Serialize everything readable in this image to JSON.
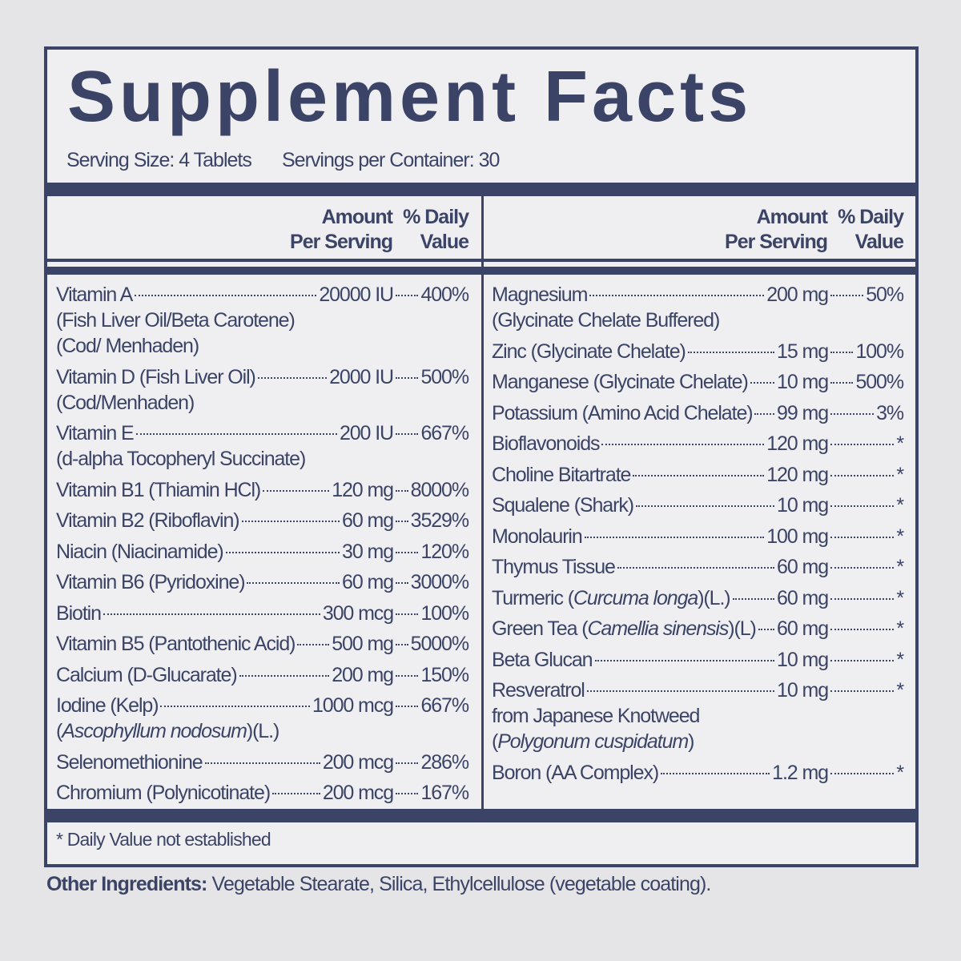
{
  "title": "Supplement Facts",
  "serving_size": "Serving Size: 4 Tablets",
  "servings_per_container": "Servings per Container: 30",
  "columns": [
    {
      "amount_header": [
        "Amount",
        "Per Serving"
      ],
      "dv_header": [
        "% Daily",
        "Value"
      ],
      "rows": [
        {
          "name": "Vitamin A",
          "amount": "20000 IU",
          "dv": "400%",
          "sub": [
            "(Fish Liver Oil/Beta Carotene)",
            "(Cod/ Menhaden)"
          ]
        },
        {
          "name": "Vitamin D (Fish Liver Oil)",
          "amount": "2000 IU",
          "dv": "500%",
          "sub": [
            "(Cod/Menhaden)"
          ]
        },
        {
          "name": "Vitamin E",
          "amount": "200 IU",
          "dv": "667%",
          "sub": [
            "(d-alpha Tocopheryl Succinate)"
          ]
        },
        {
          "name": "Vitamin B1 (Thiamin HCl)",
          "amount": "120 mg",
          "dv": "8000%"
        },
        {
          "name": "Vitamin B2 (Riboflavin)",
          "amount": "60 mg",
          "dv": "3529%"
        },
        {
          "name": "Niacin (Niacinamide)",
          "amount": "30 mg",
          "dv": "120%"
        },
        {
          "name": "Vitamin B6 (Pyridoxine)",
          "amount": "60 mg",
          "dv": "3000%"
        },
        {
          "name": "Biotin",
          "amount": "300 mcg",
          "dv": "100%"
        },
        {
          "name": "Vitamin B5 (Pantothenic Acid)",
          "amount": "500 mg",
          "dv": "5000%"
        },
        {
          "name": "Calcium (D-Glucarate)",
          "amount": "200 mg",
          "dv": "150%"
        },
        {
          "name": "Iodine (Kelp)",
          "amount": "1000 mcg",
          "dv": "667%",
          "sub": [
            [
              "(",
              "Ascophyllum nodosum",
              ")(L.)"
            ]
          ]
        },
        {
          "name": "Selenomethionine",
          "amount": "200 mcg",
          "dv": "286%"
        },
        {
          "name": "Chromium (Polynicotinate)",
          "amount": "200 mcg",
          "dv": "167%"
        }
      ]
    },
    {
      "amount_header": [
        "Amount",
        "Per Serving"
      ],
      "dv_header": [
        "% Daily",
        "Value"
      ],
      "rows": [
        {
          "name": "Magnesium",
          "amount": "200 mg",
          "dv": "50%",
          "sub": [
            "(Glycinate Chelate Buffered)"
          ]
        },
        {
          "name": "Zinc (Glycinate Chelate)",
          "amount": "15 mg",
          "dv": "100%"
        },
        {
          "name": "Manganese (Glycinate Chelate)",
          "amount": "10 mg",
          "dv": "500%"
        },
        {
          "name": "Potassium (Amino Acid Chelate)",
          "amount": "99 mg",
          "dv": "3%"
        },
        {
          "name": "Bioflavonoids",
          "amount": "120 mg",
          "dv": "*"
        },
        {
          "name": "Choline Bitartrate",
          "amount": "120 mg",
          "dv": "*"
        },
        {
          "name": "Squalene (Shark)",
          "amount": "10 mg",
          "dv": "*"
        },
        {
          "name": "Monolaurin",
          "amount": "100 mg",
          "dv": "*"
        },
        {
          "name": "Thymus Tissue",
          "amount": "60 mg",
          "dv": "*"
        },
        {
          "name": [
            "Turmeric (",
            "Curcuma longa",
            ")(L.)"
          ],
          "amount": "60 mg",
          "dv": "*"
        },
        {
          "name": [
            "Green Tea (",
            "Camellia sinensis",
            ")(L)"
          ],
          "amount": "60 mg",
          "dv": "*"
        },
        {
          "name": "Beta Glucan",
          "amount": "10 mg",
          "dv": "*"
        },
        {
          "name": "Resveratrol",
          "amount": "10 mg",
          "dv": "*",
          "sub": [
            "from Japanese Knotweed",
            [
              "(",
              "Polygonum cuspidatum",
              ")"
            ]
          ]
        },
        {
          "name": "Boron (AA Complex)",
          "amount": "1.2 mg",
          "dv": "*"
        }
      ]
    }
  ],
  "footnote": "* Daily Value not established",
  "other_ingredients": {
    "label": "Other Ingredients:",
    "text": "Vegetable Stearate, Silica, Ethylcellulose (vegetable coating)."
  }
}
